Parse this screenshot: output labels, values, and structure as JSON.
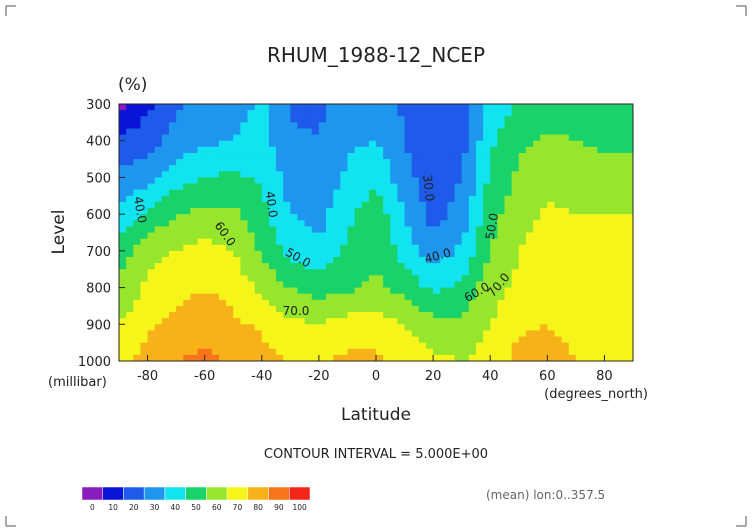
{
  "chart_data": {
    "type": "heatmap",
    "title": "RHUM_1988-12_NCEP",
    "units": "(%)",
    "xlabel": "Latitude",
    "ylabel": "Level",
    "x_unit_label": "(degrees_north)",
    "y_unit_label": "(millibar)",
    "xlim": [
      -90,
      90
    ],
    "ylim": [
      300,
      1000
    ],
    "y_inverted": true,
    "x_ticks": [
      "-80",
      "-60",
      "-40",
      "-20",
      "0",
      "20",
      "40",
      "60",
      "80"
    ],
    "y_ticks": [
      "300",
      "400",
      "500",
      "600",
      "700",
      "800",
      "900",
      "1000"
    ],
    "contour_interval_text": "CONTOUR INTERVAL = 5.000E+00",
    "footnote": "(mean) lon:0..357.5",
    "contour_labels": [
      "40.0",
      "40.0",
      "30.0",
      "50.0",
      "60.0",
      "50.0",
      "40.0",
      "70.0",
      "60.0",
      "70.0"
    ],
    "colorbar": {
      "levels": [
        0,
        10,
        20,
        30,
        40,
        50,
        60,
        70,
        80,
        90,
        100
      ],
      "tick_labels": [
        "0",
        "10",
        "20",
        "30",
        "40",
        "50",
        "60",
        "70",
        "80",
        "90",
        "100"
      ],
      "colors": [
        "#8a1bbd",
        "#0a14d6",
        "#1e5bea",
        "#1e96ee",
        "#12e3f0",
        "#19d36a",
        "#96e62e",
        "#f5f51a",
        "#f7b21a",
        "#f7741a",
        "#f5251a"
      ]
    },
    "levels_mb": [
      300,
      400,
      500,
      600,
      700,
      800,
      900,
      1000
    ],
    "latitudes": [
      -90,
      -80,
      -70,
      -60,
      -50,
      -40,
      -30,
      -20,
      -10,
      0,
      10,
      20,
      30,
      40,
      50,
      60,
      70,
      80,
      90
    ],
    "values": [
      [
        5,
        18,
        28,
        32,
        36,
        42,
        28,
        28,
        38,
        38,
        28,
        22,
        28,
        42,
        52,
        55,
        52,
        50,
        50
      ],
      [
        22,
        26,
        34,
        38,
        40,
        44,
        32,
        30,
        38,
        40,
        30,
        20,
        26,
        48,
        58,
        62,
        60,
        58,
        56
      ],
      [
        32,
        36,
        46,
        50,
        52,
        48,
        36,
        32,
        42,
        48,
        34,
        24,
        30,
        52,
        62,
        66,
        64,
        64,
        68
      ],
      [
        42,
        52,
        60,
        62,
        62,
        54,
        40,
        36,
        48,
        56,
        40,
        26,
        34,
        56,
        66,
        72,
        70,
        70,
        70
      ],
      [
        54,
        66,
        70,
        74,
        70,
        58,
        46,
        42,
        52,
        58,
        46,
        34,
        42,
        60,
        70,
        74,
        72,
        70,
        70
      ],
      [
        62,
        72,
        76,
        80,
        76,
        68,
        60,
        56,
        58,
        62,
        56,
        48,
        52,
        66,
        72,
        74,
        72,
        70,
        70
      ],
      [
        70,
        78,
        82,
        86,
        82,
        78,
        72,
        70,
        74,
        74,
        70,
        64,
        62,
        70,
        78,
        80,
        76,
        72,
        72
      ],
      [
        76,
        84,
        90,
        92,
        88,
        84,
        80,
        80,
        82,
        82,
        78,
        72,
        70,
        74,
        84,
        86,
        80,
        74,
        74
      ]
    ]
  }
}
